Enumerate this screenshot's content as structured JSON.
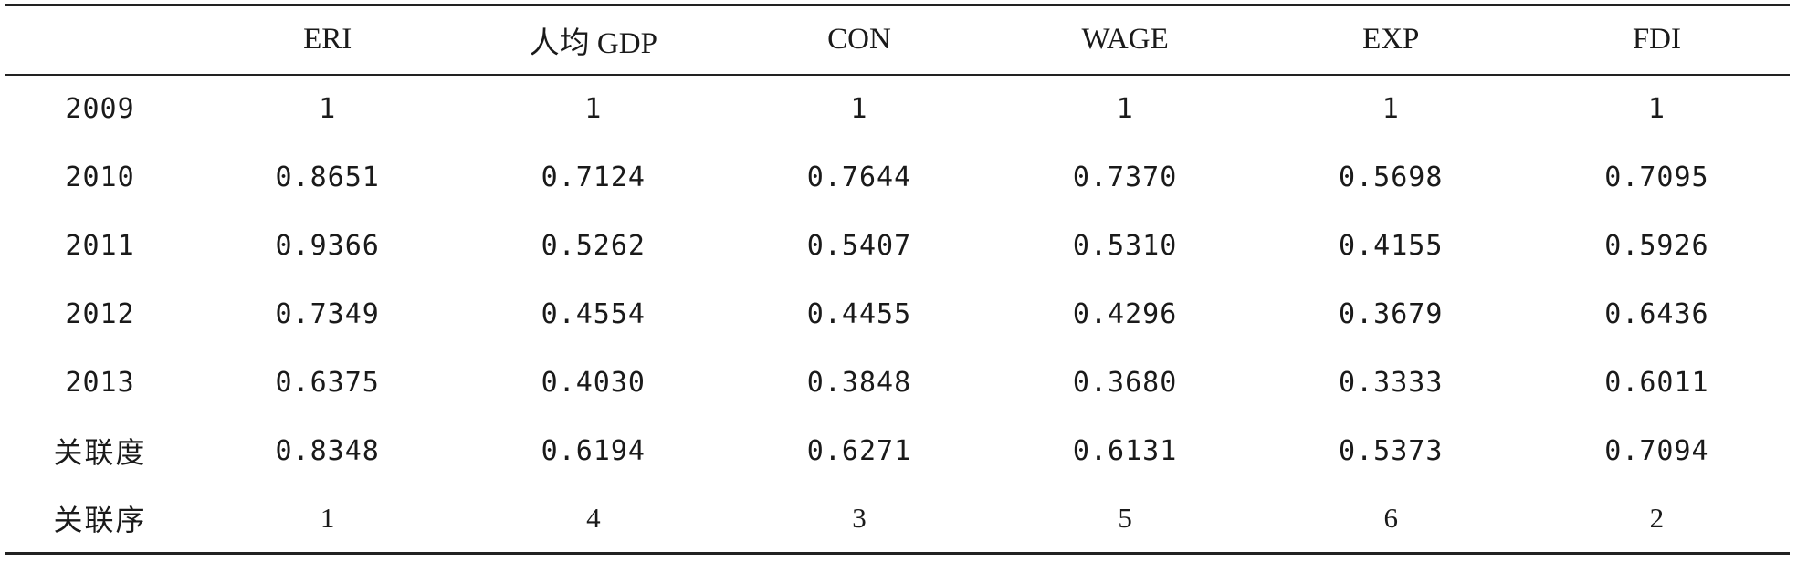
{
  "table": {
    "headers": [
      "",
      "ERI",
      "人均 GDP",
      "CON",
      "WAGE",
      "EXP",
      "FDI"
    ],
    "rows": [
      {
        "label": "2009",
        "values": [
          "1",
          "1",
          "1",
          "1",
          "1",
          "1"
        ]
      },
      {
        "label": "2010",
        "values": [
          "0.8651",
          "0.7124",
          "0.7644",
          "0.7370",
          "0.5698",
          "0.7095"
        ]
      },
      {
        "label": "2011",
        "values": [
          "0.9366",
          "0.5262",
          "0.5407",
          "0.5310",
          "0.4155",
          "0.5926"
        ]
      },
      {
        "label": "2012",
        "values": [
          "0.7349",
          "0.4554",
          "0.4455",
          "0.4296",
          "0.3679",
          "0.6436"
        ]
      },
      {
        "label": "2013",
        "values": [
          "0.6375",
          "0.4030",
          "0.3848",
          "0.3680",
          "0.3333",
          "0.6011"
        ]
      },
      {
        "label": "关联度",
        "values": [
          "0.8348",
          "0.6194",
          "0.6271",
          "0.6131",
          "0.5373",
          "0.7094"
        ]
      },
      {
        "label": "关联序",
        "values": [
          "1",
          "4",
          "3",
          "5",
          "6",
          "2"
        ]
      }
    ]
  }
}
